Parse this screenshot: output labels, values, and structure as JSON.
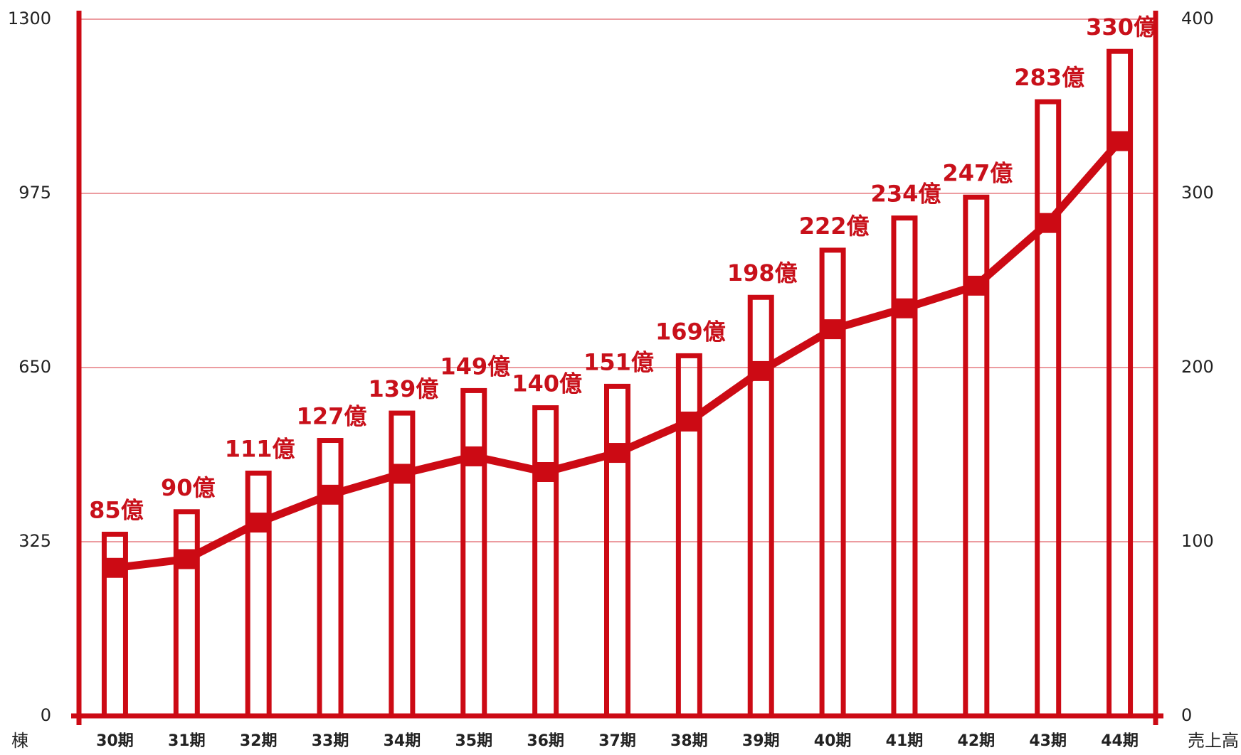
{
  "chart_data": {
    "type": "bar-line",
    "categories": [
      "30期",
      "31期",
      "32期",
      "33期",
      "34期",
      "35期",
      "36期",
      "37期",
      "38期",
      "39期",
      "40期",
      "41期",
      "42期",
      "43期",
      "44期"
    ],
    "series": [
      {
        "type": "bar",
        "color": "#cc0a14",
        "values": [
          339,
          381,
          453,
          514,
          565,
          607,
          575,
          615,
          672,
          781,
          869,
          929,
          968,
          1146,
          1240
        ]
      },
      {
        "type": "line",
        "axis": "y2",
        "color": "#cc0a14",
        "values": [
          85,
          90,
          111,
          127,
          139,
          149,
          140,
          151,
          169,
          198,
          222,
          234,
          247,
          283,
          330
        ],
        "value_labels": [
          "85億",
          "90億",
          "111億",
          "127億",
          "139億",
          "149億",
          "140億",
          "151億",
          "169億",
          "198億",
          "222億",
          "234億",
          "247億",
          "283億",
          "330億"
        ]
      }
    ],
    "ylabel": "棟",
    "y2label": "売上高",
    "ylim": [
      0,
      1300
    ],
    "yticks": [
      0,
      325,
      650,
      975,
      1300
    ],
    "y2lim": [
      0,
      400
    ],
    "y2ticks": [
      0,
      100,
      200,
      300,
      400
    ],
    "grid": true,
    "grid_color": "#e06068"
  }
}
